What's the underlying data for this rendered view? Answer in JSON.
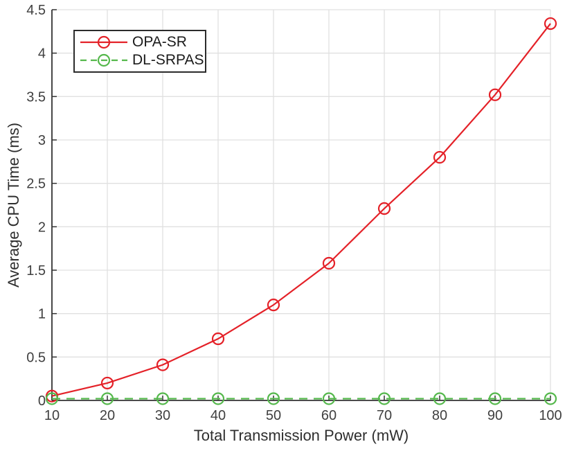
{
  "chart_data": {
    "type": "line",
    "xlabel": "Total Transmission Power (mW)",
    "ylabel": "Average CPU Time (ms)",
    "x": [
      10,
      20,
      30,
      40,
      50,
      60,
      70,
      80,
      90,
      100
    ],
    "xticks": [
      10,
      20,
      30,
      40,
      50,
      60,
      70,
      80,
      90,
      100
    ],
    "yticks": [
      0,
      0.5,
      1,
      1.5,
      2,
      2.5,
      3,
      3.5,
      4,
      4.5
    ],
    "xlim": [
      10,
      100
    ],
    "ylim": [
      0,
      4.5
    ],
    "grid": true,
    "legend_position": "top-left",
    "series": [
      {
        "name": "OPA-SR",
        "color": "#e42128",
        "line_style": "solid",
        "marker": "circle",
        "values": [
          0.05,
          0.2,
          0.41,
          0.71,
          1.1,
          1.58,
          2.21,
          2.8,
          3.52,
          4.34
        ]
      },
      {
        "name": "DL-SRPAS",
        "color": "#55b84c",
        "line_style": "dashed",
        "marker": "circle",
        "values": [
          0.02,
          0.02,
          0.02,
          0.02,
          0.02,
          0.02,
          0.02,
          0.02,
          0.02,
          0.02
        ]
      }
    ],
    "colors": {
      "grid": "#e0e0e0",
      "axis": "#333333",
      "tick_label": "#3f3f3f",
      "background": "#ffffff"
    }
  }
}
